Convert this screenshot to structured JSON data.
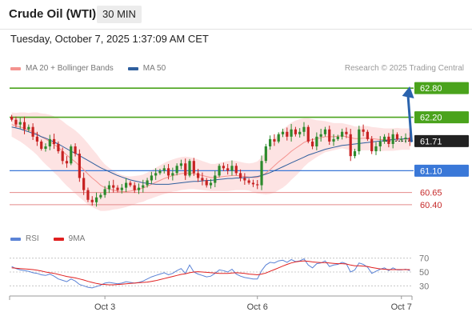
{
  "header": {
    "title": "Crude Oil (WTI)",
    "interval": "30 MIN"
  },
  "datetime": "Tuesday, October 7, 2025 1:37:09 AM CET",
  "legend": [
    {
      "label": "MA 20 + Bollinger Bands",
      "color": "#f4938f"
    },
    {
      "label": "MA 50",
      "color": "#2f5f9e"
    }
  ],
  "credit": "Research © 2025 Trading Central",
  "rsi_legend": [
    {
      "label": "RSI",
      "color": "#5b83d6"
    },
    {
      "label": "9MA",
      "color": "#e02020"
    }
  ],
  "colors": {
    "up": "#2c8a2c",
    "down": "#c72222",
    "resistance": "#4aa31c",
    "support": "#3a78d8",
    "minor": "#e48a8a",
    "arrow": "#2a63ad",
    "band": "#fde0e0",
    "current": "#222222"
  },
  "chart_data": [
    {
      "type": "candlestick",
      "title": "Crude Oil (WTI)",
      "ylim": [
        60.2,
        63.0
      ],
      "x_ticks": [
        {
          "label": "Oct 3",
          "index": 22
        },
        {
          "label": "Oct 6",
          "index": 58
        },
        {
          "label": "Oct 7",
          "index": 92
        }
      ],
      "levels": [
        {
          "value": 62.8,
          "label": "62.80",
          "kind": "resistance"
        },
        {
          "value": 62.2,
          "label": "62.20",
          "kind": "resistance"
        },
        {
          "value": 61.71,
          "label": "61.71",
          "kind": "current"
        },
        {
          "value": 61.1,
          "label": "61.10",
          "kind": "support"
        },
        {
          "value": 60.65,
          "label": "60.65",
          "kind": "minor"
        },
        {
          "value": 60.4,
          "label": "60.40",
          "kind": "minor"
        }
      ],
      "closes": [
        62.15,
        62.05,
        62.1,
        61.95,
        62.0,
        61.8,
        61.7,
        61.55,
        61.6,
        61.75,
        61.65,
        61.5,
        61.3,
        61.25,
        61.6,
        61.45,
        60.95,
        60.7,
        60.5,
        60.45,
        60.55,
        60.6,
        60.72,
        60.8,
        60.75,
        60.7,
        60.75,
        60.85,
        60.8,
        60.7,
        60.75,
        60.8,
        60.9,
        61.0,
        61.05,
        61.1,
        61.15,
        61.0,
        61.05,
        61.2,
        61.25,
        61.0,
        61.3,
        61.05,
        60.95,
        60.9,
        60.8,
        60.85,
        61.0,
        61.2,
        61.15,
        61.1,
        61.2,
        61.05,
        60.95,
        60.9,
        60.85,
        60.82,
        60.8,
        61.3,
        61.6,
        61.75,
        61.7,
        61.85,
        61.9,
        61.8,
        61.95,
        61.85,
        61.9,
        62.0,
        61.7,
        61.6,
        61.8,
        61.85,
        61.95,
        61.7,
        61.75,
        61.8,
        61.9,
        61.85,
        61.4,
        61.5,
        61.95,
        61.9,
        61.75,
        61.5,
        61.6,
        61.7,
        61.8,
        61.65,
        61.85,
        61.75,
        61.75,
        61.78,
        61.71
      ],
      "ma20": [
        62.05,
        62.02,
        62.0,
        61.97,
        61.93,
        61.9,
        61.86,
        61.8,
        61.75,
        61.7,
        61.64,
        61.58,
        61.5,
        61.42,
        61.35,
        61.28,
        61.2,
        61.12,
        61.03,
        60.95,
        60.88,
        60.8,
        60.75,
        60.72,
        60.7,
        60.68,
        60.67,
        60.67,
        60.68,
        60.7,
        60.72,
        60.74,
        60.78,
        60.82,
        60.86,
        60.9,
        60.94,
        60.97,
        61.0,
        61.02,
        61.04,
        61.05,
        61.05,
        61.04,
        61.02,
        61.0,
        60.98,
        60.96,
        60.96,
        60.97,
        60.98,
        60.99,
        61.0,
        61.0,
        60.99,
        60.98,
        60.97,
        60.96,
        60.96,
        61.0,
        61.05,
        61.12,
        61.2,
        61.28,
        61.35,
        61.42,
        61.5,
        61.56,
        61.62,
        61.68,
        61.72,
        61.74,
        61.76,
        61.78,
        61.8,
        61.8,
        61.8,
        61.81,
        61.82,
        61.8,
        61.78,
        61.76,
        61.76,
        61.77,
        61.77,
        61.76,
        61.75,
        61.74,
        61.74,
        61.74,
        61.74,
        61.75,
        61.75,
        61.75,
        61.75
      ],
      "ma50": [
        62.0,
        61.98,
        61.96,
        61.93,
        61.9,
        61.87,
        61.84,
        61.8,
        61.77,
        61.73,
        61.69,
        61.65,
        61.6,
        61.55,
        61.5,
        61.46,
        61.41,
        61.36,
        61.31,
        61.26,
        61.21,
        61.16,
        61.12,
        61.08,
        61.04,
        61.0,
        60.97,
        60.94,
        60.91,
        60.89,
        60.87,
        60.85,
        60.84,
        60.83,
        60.82,
        60.82,
        60.82,
        60.82,
        60.83,
        60.84,
        60.85,
        60.86,
        60.87,
        60.88,
        60.88,
        60.89,
        60.9,
        60.9,
        60.91,
        60.92,
        60.93,
        60.94,
        60.94,
        60.95,
        60.95,
        60.96,
        60.96,
        60.97,
        60.98,
        61.0,
        61.03,
        61.06,
        61.1,
        61.14,
        61.18,
        61.22,
        61.26,
        61.3,
        61.34,
        61.38,
        61.42,
        61.45,
        61.48,
        61.51,
        61.54,
        61.56,
        61.58,
        61.6,
        61.62,
        61.63,
        61.64,
        61.65,
        61.66,
        61.67,
        61.68,
        61.69,
        61.7,
        61.71,
        61.72,
        61.73,
        61.74,
        61.75,
        61.75,
        61.76,
        61.76
      ],
      "band_width": [
        0.25,
        0.27,
        0.3,
        0.33,
        0.36,
        0.4,
        0.44,
        0.48,
        0.52,
        0.55,
        0.58,
        0.6,
        0.62,
        0.63,
        0.64,
        0.65,
        0.65,
        0.64,
        0.63,
        0.6,
        0.57,
        0.53,
        0.48,
        0.44,
        0.4,
        0.37,
        0.34,
        0.32,
        0.3,
        0.29,
        0.28,
        0.28,
        0.28,
        0.29,
        0.3,
        0.31,
        0.32,
        0.33,
        0.33,
        0.34,
        0.34,
        0.34,
        0.33,
        0.32,
        0.31,
        0.3,
        0.29,
        0.28,
        0.28,
        0.29,
        0.3,
        0.31,
        0.31,
        0.3,
        0.29,
        0.28,
        0.28,
        0.3,
        0.33,
        0.38,
        0.44,
        0.5,
        0.55,
        0.58,
        0.6,
        0.6,
        0.59,
        0.57,
        0.54,
        0.5,
        0.46,
        0.42,
        0.38,
        0.35,
        0.32,
        0.3,
        0.28,
        0.27,
        0.26,
        0.26,
        0.26,
        0.25,
        0.25,
        0.25,
        0.25,
        0.24,
        0.24,
        0.24,
        0.23,
        0.23,
        0.23,
        0.23,
        0.22,
        0.22,
        0.22
      ],
      "forecast": {
        "from_value": 61.71,
        "to_value": 62.8
      }
    },
    {
      "type": "line",
      "title": "RSI",
      "ylim": [
        20,
        80
      ],
      "y_ticks": [
        70,
        50,
        30
      ],
      "rsi": [
        58,
        55,
        53,
        52,
        51,
        49,
        48,
        46,
        45,
        47,
        44,
        40,
        38,
        36,
        40,
        37,
        32,
        30,
        28,
        27,
        29,
        31,
        34,
        35,
        34,
        33,
        34,
        36,
        35,
        34,
        35,
        37,
        40,
        43,
        45,
        47,
        49,
        46,
        48,
        52,
        55,
        48,
        60,
        50,
        47,
        45,
        43,
        44,
        48,
        53,
        52,
        50,
        54,
        47,
        44,
        42,
        41,
        40,
        40,
        52,
        60,
        64,
        63,
        66,
        67,
        64,
        68,
        65,
        66,
        69,
        60,
        56,
        62,
        63,
        66,
        58,
        60,
        61,
        64,
        62,
        50,
        53,
        63,
        61,
        57,
        48,
        51,
        54,
        56,
        52,
        56,
        53,
        53,
        54,
        52
      ],
      "ma9": [
        56,
        55.5,
        55,
        54.5,
        54,
        53.5,
        52.5,
        51.5,
        50,
        49,
        48,
        46.5,
        45,
        43.5,
        42.5,
        41.5,
        40,
        38.5,
        36.5,
        35,
        33.5,
        32.5,
        32,
        31.5,
        31.5,
        32,
        32.5,
        33,
        33.5,
        34,
        34.5,
        35,
        35.5,
        36.5,
        37.5,
        39,
        40.5,
        42,
        43.5,
        45,
        46.5,
        47.5,
        49,
        50,
        50.5,
        50,
        49.5,
        49,
        48.5,
        48,
        48,
        48,
        48.5,
        49,
        48.5,
        48,
        47,
        46.5,
        46,
        47,
        48.5,
        51,
        53.5,
        56,
        58.5,
        61,
        63,
        64.5,
        65.5,
        66,
        65.5,
        64.5,
        64,
        63.5,
        63.5,
        63,
        62.5,
        62,
        62,
        61.5,
        60,
        59,
        59,
        58.5,
        58,
        56.5,
        55.5,
        54.5,
        54,
        53.5,
        53.5,
        53.5,
        53.5,
        53.5,
        53.5
      ]
    }
  ]
}
